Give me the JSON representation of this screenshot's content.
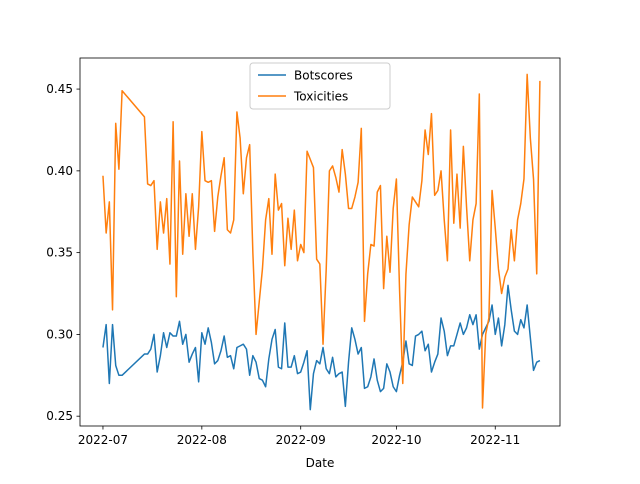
{
  "chart_data": {
    "type": "line",
    "xlabel": "Date",
    "x": [
      0,
      1,
      2,
      3,
      4,
      5,
      6,
      13,
      14,
      15,
      16,
      17,
      18,
      19,
      20,
      21,
      22,
      23,
      24,
      25,
      26,
      27,
      28,
      29,
      30,
      31,
      32,
      33,
      34,
      35,
      36,
      37,
      38,
      39,
      40,
      41,
      42,
      43,
      44,
      45,
      46,
      47,
      48,
      49,
      50,
      51,
      52,
      53,
      54,
      55,
      56,
      57,
      58,
      59,
      60,
      61,
      62,
      63,
      64,
      65,
      66,
      67,
      68,
      69,
      70,
      71,
      72,
      73,
      74,
      75,
      76,
      77,
      78,
      79,
      80,
      81,
      82,
      83,
      84,
      85,
      86,
      87,
      88,
      89,
      90,
      91,
      92,
      93,
      94,
      95,
      96,
      97,
      98,
      99,
      100,
      101,
      102,
      103,
      104,
      105,
      106,
      107,
      108,
      109,
      110,
      111,
      112,
      113,
      114,
      115,
      116,
      117,
      118,
      119,
      120,
      121,
      122,
      123,
      124,
      125,
      126,
      127,
      128,
      129,
      130,
      131,
      132,
      133,
      134,
      135,
      136,
      137
    ],
    "series": [
      {
        "name": "Botscores",
        "color": "#1f77b4",
        "values": [
          0.292,
          0.306,
          0.27,
          0.306,
          0.281,
          0.275,
          0.275,
          0.288,
          0.288,
          0.291,
          0.3,
          0.277,
          0.287,
          0.301,
          0.292,
          0.301,
          0.299,
          0.299,
          0.308,
          0.294,
          0.3,
          0.283,
          0.288,
          0.292,
          0.271,
          0.301,
          0.294,
          0.304,
          0.295,
          0.282,
          0.284,
          0.29,
          0.299,
          0.286,
          0.287,
          0.279,
          0.292,
          0.293,
          0.294,
          0.291,
          0.275,
          0.287,
          0.283,
          0.273,
          0.272,
          0.268,
          0.285,
          0.297,
          0.303,
          0.28,
          0.279,
          0.307,
          0.28,
          0.28,
          0.287,
          0.276,
          0.277,
          0.283,
          0.29,
          0.254,
          0.276,
          0.284,
          0.282,
          0.292,
          0.279,
          0.276,
          0.286,
          0.274,
          0.276,
          0.277,
          0.256,
          0.283,
          0.304,
          0.297,
          0.288,
          0.292,
          0.267,
          0.268,
          0.274,
          0.285,
          0.272,
          0.265,
          0.267,
          0.282,
          0.277,
          0.268,
          0.265,
          0.275,
          0.283,
          0.296,
          0.282,
          0.281,
          0.299,
          0.3,
          0.302,
          0.29,
          0.294,
          0.277,
          0.283,
          0.288,
          0.31,
          0.302,
          0.287,
          0.293,
          0.293,
          0.3,
          0.307,
          0.3,
          0.304,
          0.312,
          0.306,
          0.312,
          0.291,
          0.3,
          0.304,
          0.308,
          0.318,
          0.3,
          0.31,
          0.293,
          0.306,
          0.33,
          0.315,
          0.302,
          0.3,
          0.309,
          0.304,
          0.318,
          0.298,
          0.278,
          0.283,
          0.284
        ]
      },
      {
        "name": "Toxicities",
        "color": "#ff7f0e",
        "values": [
          0.397,
          0.362,
          0.381,
          0.315,
          0.429,
          0.401,
          0.449,
          0.433,
          0.392,
          0.391,
          0.394,
          0.352,
          0.381,
          0.362,
          0.383,
          0.343,
          0.43,
          0.323,
          0.406,
          0.349,
          0.386,
          0.36,
          0.386,
          0.352,
          0.378,
          0.424,
          0.394,
          0.393,
          0.394,
          0.363,
          0.384,
          0.397,
          0.408,
          0.364,
          0.362,
          0.37,
          0.436,
          0.42,
          0.386,
          0.408,
          0.416,
          0.35,
          0.3,
          0.32,
          0.34,
          0.37,
          0.383,
          0.349,
          0.398,
          0.376,
          0.38,
          0.342,
          0.371,
          0.352,
          0.376,
          0.345,
          0.355,
          0.35,
          0.412,
          0.407,
          0.402,
          0.346,
          0.343,
          0.294,
          0.34,
          0.4,
          0.403,
          0.396,
          0.387,
          0.413,
          0.398,
          0.377,
          0.377,
          0.384,
          0.393,
          0.426,
          0.308,
          0.337,
          0.355,
          0.354,
          0.387,
          0.391,
          0.328,
          0.36,
          0.338,
          0.377,
          0.395,
          0.327,
          0.27,
          0.337,
          0.367,
          0.384,
          0.381,
          0.378,
          0.394,
          0.425,
          0.41,
          0.435,
          0.385,
          0.388,
          0.4,
          0.37,
          0.345,
          0.425,
          0.368,
          0.398,
          0.365,
          0.415,
          0.378,
          0.345,
          0.37,
          0.38,
          0.447,
          0.255,
          0.3,
          0.31,
          0.388,
          0.365,
          0.34,
          0.325,
          0.335,
          0.34,
          0.364,
          0.345,
          0.37,
          0.38,
          0.395,
          0.459,
          0.42,
          0.395,
          0.337,
          0.455
        ]
      }
    ],
    "xlim": [
      -7.2,
      143.3
    ],
    "xticks": [
      {
        "value": 0,
        "label": "2022-07"
      },
      {
        "value": 31,
        "label": "2022-08"
      },
      {
        "value": 62,
        "label": "2022-09"
      },
      {
        "value": 92,
        "label": "2022-10"
      },
      {
        "value": 123,
        "label": "2022-11"
      }
    ],
    "ylim": [
      0.244,
      0.469
    ],
    "yticks": [
      {
        "value": 0.25,
        "label": "0.25"
      },
      {
        "value": 0.3,
        "label": "0.30"
      },
      {
        "value": 0.35,
        "label": "0.35"
      },
      {
        "value": 0.4,
        "label": "0.40"
      },
      {
        "value": 0.45,
        "label": "0.45"
      }
    ],
    "legend": "upper center"
  }
}
